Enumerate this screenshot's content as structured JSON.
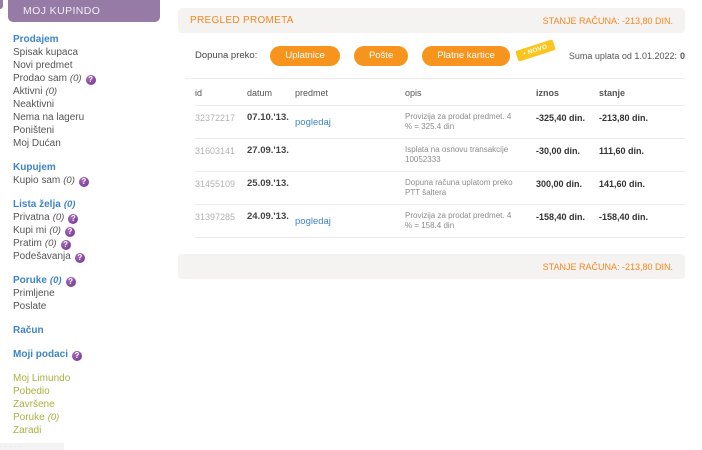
{
  "colors": {
    "accent_orange": "#F6861F",
    "button_orange": "#F7941D",
    "badge_yellow": "#FCC51D",
    "purple": "#967BA6",
    "help_purple": "#7D3F94",
    "link_blue": "#3D85C8",
    "olive": "#A9B23E",
    "bar_bg": "#F4F3F1"
  },
  "icons": {
    "help": "?"
  },
  "sidebar": {
    "header": "MOJ KUPINDO",
    "groups": [
      {
        "title": "Prodajem",
        "style": "blue",
        "items": [
          {
            "label": "Spisak kupaca"
          },
          {
            "label": "Novi predmet"
          },
          {
            "label": "Prodao sam",
            "count": "(0)",
            "help": true
          },
          {
            "label": "Aktivni",
            "count": "(0)"
          },
          {
            "label": "Neaktivni"
          },
          {
            "label": "Nema na lageru"
          },
          {
            "label": "Poništeni"
          },
          {
            "label": "Moj Dućan"
          }
        ]
      },
      {
        "title": "Kupujem",
        "style": "blue",
        "items": [
          {
            "label": "Kupio sam",
            "count": "(0)",
            "help": true
          }
        ]
      },
      {
        "title": "Lista želja",
        "titleCount": "(0)",
        "style": "blue",
        "items": [
          {
            "label": "Privatna",
            "count": "(0)",
            "help": true
          },
          {
            "label": "Kupi mi",
            "count": "(0)",
            "help": true
          },
          {
            "label": "Pratim",
            "count": "(0)",
            "help": true
          },
          {
            "label": "Podešavanja",
            "help": true
          }
        ]
      },
      {
        "title": "Poruke",
        "titleCount": "(0)",
        "titleHelp": true,
        "style": "blue",
        "items": [
          {
            "label": "Primljene"
          },
          {
            "label": "Poslate"
          }
        ]
      },
      {
        "title": "Račun",
        "style": "blue",
        "items": []
      },
      {
        "title": "Moji podaci",
        "titleHelp": true,
        "style": "blue",
        "items": []
      },
      {
        "style": "olive",
        "items": [
          {
            "label": "Moj Limundo"
          },
          {
            "label": "Pobedio"
          },
          {
            "label": "Završene"
          },
          {
            "label": "Poruke",
            "count": "(0)"
          },
          {
            "label": "Zaradi"
          }
        ]
      }
    ]
  },
  "main": {
    "header": {
      "title": "PREGLED PROMETA",
      "balance": "STANJE RAČUNA: -213,80 DIN."
    },
    "topup": {
      "label": "Dopuna preko:",
      "buttons": [
        "Uplatnice",
        "Pošte",
        "Platne kartice"
      ],
      "badge": "• NOVO",
      "summary_prefix": "Suma uplata od 1.01.2022:",
      "summary_value": "0"
    },
    "table": {
      "columns": [
        "id",
        "datum",
        "predmet",
        "opis",
        "iznos",
        "stanje"
      ],
      "rows": [
        {
          "id": "32372217",
          "datum": "07.10.'13.",
          "predmet": "pogledaj",
          "opis": "Provizija za prodat predmet. 4 % = 325.4 din",
          "iznos": "-325,40 din.",
          "stanje": "-213,80 din."
        },
        {
          "id": "31603141",
          "datum": "27.09.'13.",
          "predmet": "",
          "opis": "Isplata na osnovu transakcije 10052333",
          "iznos": "-30,00 din.",
          "stanje": "111,60 din."
        },
        {
          "id": "31455109",
          "datum": "25.09.'13.",
          "predmet": "",
          "opis": "Dopuna računa uplatom preko PTT šaltera",
          "iznos": "300,00 din.",
          "stanje": "141,60 din."
        },
        {
          "id": "31397285",
          "datum": "24.09.'13.",
          "predmet": "pogledaj",
          "opis": "Provizija za prodat predmet. 4 % = 158.4 din",
          "iznos": "-158,40 din.",
          "stanje": "-158,40 din."
        }
      ]
    },
    "footer": {
      "balance": "STANJE RAČUNA: -213,80 DIN."
    }
  }
}
